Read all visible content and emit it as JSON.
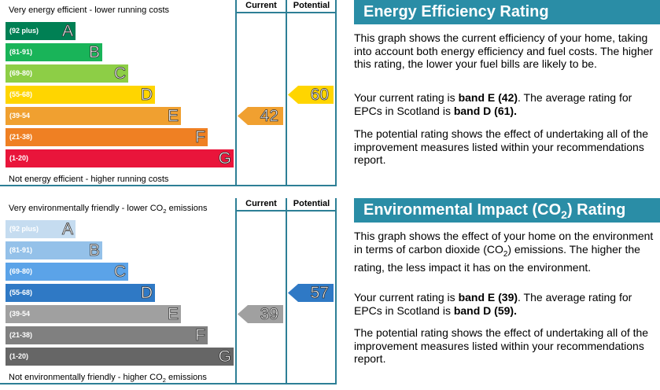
{
  "sections": [
    {
      "title": [
        {
          "text": "Energy Efficiency Rating"
        }
      ],
      "top_label": [
        {
          "text": "Very energy efficient - lower running costs"
        }
      ],
      "bottom_label": [
        {
          "text": "Not energy efficient - higher running costs"
        }
      ],
      "columns": [
        "Current",
        "Potential"
      ],
      "bands": [
        {
          "range": "(92 plus)",
          "letter": "A",
          "color": "#008054"
        },
        {
          "range": "(81-91)",
          "letter": "B",
          "color": "#19b459"
        },
        {
          "range": "(69-80)",
          "letter": "C",
          "color": "#8dce46"
        },
        {
          "range": "(55-68)",
          "letter": "D",
          "color": "#ffd500"
        },
        {
          "range": "(39-54",
          "letter": "E",
          "color": "#f0a030"
        },
        {
          "range": "(21-38)",
          "letter": "F",
          "color": "#ef8023"
        },
        {
          "range": "(1-20)",
          "letter": "G",
          "color": "#e9153b"
        }
      ],
      "current": 42,
      "potential": 60,
      "paragraphs": [
        [
          {
            "text": "This graph shows the current efficiency of your home, taking into account both energy efficiency and fuel costs. The higher this rating, the lower your fuel bills are likely to be."
          }
        ],
        [
          {
            "text": "Your current rating is "
          },
          {
            "text": "band E (42)",
            "bold": true
          },
          {
            "text": ". The average rating for EPCs in Scotland is "
          },
          {
            "text": "band D (61).",
            "bold": true
          }
        ],
        [
          {
            "text": "The potential rating shows the effect of undertaking all of the improvement measures listed within your recommendations report."
          }
        ]
      ]
    },
    {
      "title": [
        {
          "text": "Environmental Impact (CO"
        },
        {
          "text": "2",
          "sub": true
        },
        {
          "text": ") Rating"
        }
      ],
      "top_label": [
        {
          "text": "Very environmentally friendly - lower CO"
        },
        {
          "text": "2",
          "sub": true
        },
        {
          "text": " emissions"
        }
      ],
      "bottom_label": [
        {
          "text": "Not environmentally friendly - higher CO"
        },
        {
          "text": "2",
          "sub": true
        },
        {
          "text": " emissions"
        }
      ],
      "columns": [
        "Current",
        "Potential"
      ],
      "bands": [
        {
          "range": "(92 plus)",
          "letter": "A",
          "color": "#c5dcf0"
        },
        {
          "range": "(81-91)",
          "letter": "B",
          "color": "#94c1e9"
        },
        {
          "range": "(69-80)",
          "letter": "C",
          "color": "#5ba3e8"
        },
        {
          "range": "(55-68)",
          "letter": "D",
          "color": "#2f79c5"
        },
        {
          "range": "(39-54",
          "letter": "E",
          "color": "#a0a0a0"
        },
        {
          "range": "(21-38)",
          "letter": "F",
          "color": "#808080"
        },
        {
          "range": "(1-20)",
          "letter": "G",
          "color": "#666666"
        }
      ],
      "current": 39,
      "potential": 57,
      "paragraphs": [
        [
          {
            "text": "This graph shows the effect of your home on the environment in terms of carbon dioxide (CO"
          },
          {
            "text": "2",
            "sub": true
          },
          {
            "text": ") emissions. The higher the rating, the less impact it has on the environment."
          }
        ],
        [
          {
            "text": "Your current rating is "
          },
          {
            "text": "band E (39)",
            "bold": true
          },
          {
            "text": ". The average rating for EPCs in Scotland is "
          },
          {
            "text": "band D (59).",
            "bold": true
          }
        ],
        [
          {
            "text": "The potential rating shows the effect of undertaking all of the improvement measures listed within your recommendations report."
          }
        ]
      ]
    }
  ]
}
